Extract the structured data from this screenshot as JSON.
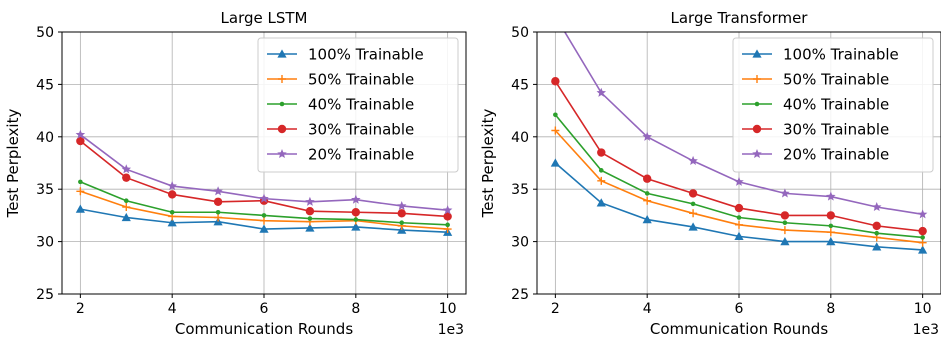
{
  "chart_data": [
    {
      "type": "line",
      "title": "Large LSTM",
      "xlabel": "Communication Rounds",
      "ylabel": "Test Perplexity",
      "x_multiplier": "1e3",
      "x": [
        2,
        3,
        4,
        5,
        6,
        7,
        8,
        9,
        10
      ],
      "xlim": [
        1.6,
        10.4
      ],
      "ylim": [
        25,
        50
      ],
      "xticks": [
        "2",
        "4",
        "6",
        "8",
        "10"
      ],
      "yticks": [
        "25",
        "30",
        "35",
        "40",
        "45",
        "50"
      ],
      "grid": true,
      "legend_position": "top-right",
      "series": [
        {
          "name": "100% Trainable",
          "color": "#1f77b4",
          "marker": "triangle",
          "values": [
            33.1,
            32.3,
            31.8,
            31.9,
            31.2,
            31.3,
            31.4,
            31.1,
            30.9
          ]
        },
        {
          "name": "50% Trainable",
          "color": "#ff7f0e",
          "marker": "plus",
          "values": [
            34.8,
            33.3,
            32.4,
            32.3,
            32.0,
            31.9,
            32.0,
            31.5,
            31.2
          ]
        },
        {
          "name": "40% Trainable",
          "color": "#2ca02c",
          "marker": "dot",
          "values": [
            35.7,
            33.9,
            32.8,
            32.8,
            32.5,
            32.2,
            32.1,
            31.8,
            31.6
          ]
        },
        {
          "name": "30% Trainable",
          "color": "#d62728",
          "marker": "circle",
          "values": [
            39.6,
            36.1,
            34.5,
            33.8,
            33.9,
            32.9,
            32.8,
            32.7,
            32.4
          ]
        },
        {
          "name": "20% Trainable",
          "color": "#9467bd",
          "marker": "star",
          "values": [
            40.2,
            36.9,
            35.3,
            34.8,
            34.1,
            33.8,
            34.0,
            33.4,
            33.0
          ]
        }
      ]
    },
    {
      "type": "line",
      "title": "Large Transformer",
      "xlabel": "Communication Rounds",
      "ylabel": "Test Perplexity",
      "x_multiplier": "1e3",
      "x": [
        2,
        3,
        4,
        5,
        6,
        7,
        8,
        9,
        10
      ],
      "xlim": [
        1.6,
        10.4
      ],
      "ylim": [
        25,
        50
      ],
      "xticks": [
        "2",
        "4",
        "6",
        "8",
        "10"
      ],
      "yticks": [
        "25",
        "30",
        "35",
        "40",
        "45",
        "50"
      ],
      "grid": true,
      "legend_position": "top-right",
      "series": [
        {
          "name": "100% Trainable",
          "color": "#1f77b4",
          "marker": "triangle",
          "values": [
            37.5,
            33.7,
            32.1,
            31.4,
            30.5,
            30.0,
            30.0,
            29.5,
            29.2
          ]
        },
        {
          "name": "50% Trainable",
          "color": "#ff7f0e",
          "marker": "plus",
          "values": [
            40.6,
            35.8,
            33.9,
            32.7,
            31.6,
            31.1,
            30.9,
            30.4,
            29.9
          ]
        },
        {
          "name": "40% Trainable",
          "color": "#2ca02c",
          "marker": "dot",
          "values": [
            42.1,
            36.8,
            34.6,
            33.6,
            32.3,
            31.8,
            31.5,
            30.8,
            30.4
          ]
        },
        {
          "name": "30% Trainable",
          "color": "#d62728",
          "marker": "circle",
          "values": [
            45.3,
            38.5,
            36.0,
            34.6,
            33.2,
            32.5,
            32.5,
            31.5,
            31.0
          ]
        },
        {
          "name": "20% Trainable",
          "color": "#9467bd",
          "marker": "star",
          "values": [
            51.5,
            44.2,
            40.0,
            37.7,
            35.7,
            34.6,
            34.3,
            33.3,
            32.6
          ]
        }
      ]
    }
  ]
}
